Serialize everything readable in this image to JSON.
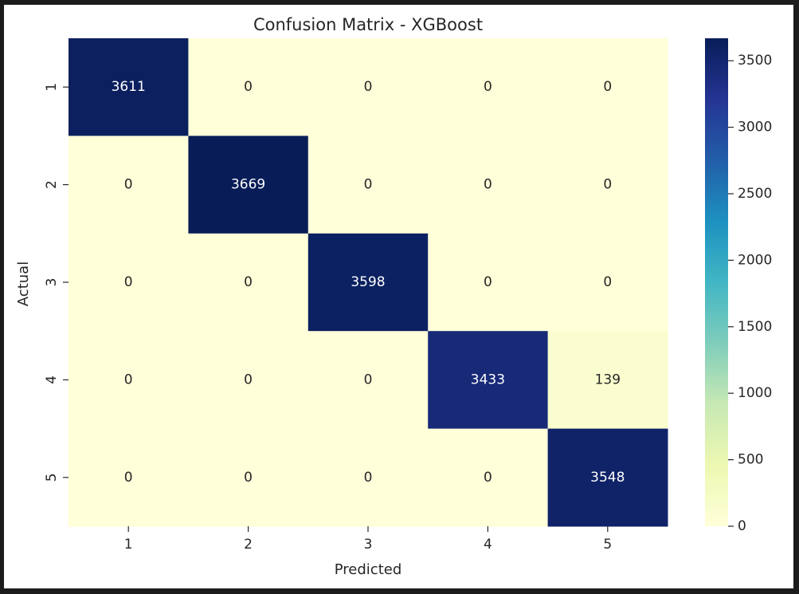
{
  "chart_data": {
    "type": "heatmap",
    "title": "Confusion Matrix - XGBoost",
    "xlabel": "Predicted",
    "ylabel": "Actual",
    "x_categories": [
      "1",
      "2",
      "3",
      "4",
      "5"
    ],
    "y_categories": [
      "1",
      "2",
      "3",
      "4",
      "5"
    ],
    "values": [
      [
        3611,
        0,
        0,
        0,
        0
      ],
      [
        0,
        3669,
        0,
        0,
        0
      ],
      [
        0,
        0,
        3598,
        0,
        0
      ],
      [
        0,
        0,
        0,
        3433,
        139
      ],
      [
        0,
        0,
        0,
        0,
        3548
      ]
    ],
    "colormap": "YlGnBu",
    "colorbar": {
      "vmin": 0,
      "vmax": 3669,
      "ticks": [
        0,
        500,
        1000,
        1500,
        2000,
        2500,
        3000,
        3500
      ]
    },
    "annotations": true
  }
}
